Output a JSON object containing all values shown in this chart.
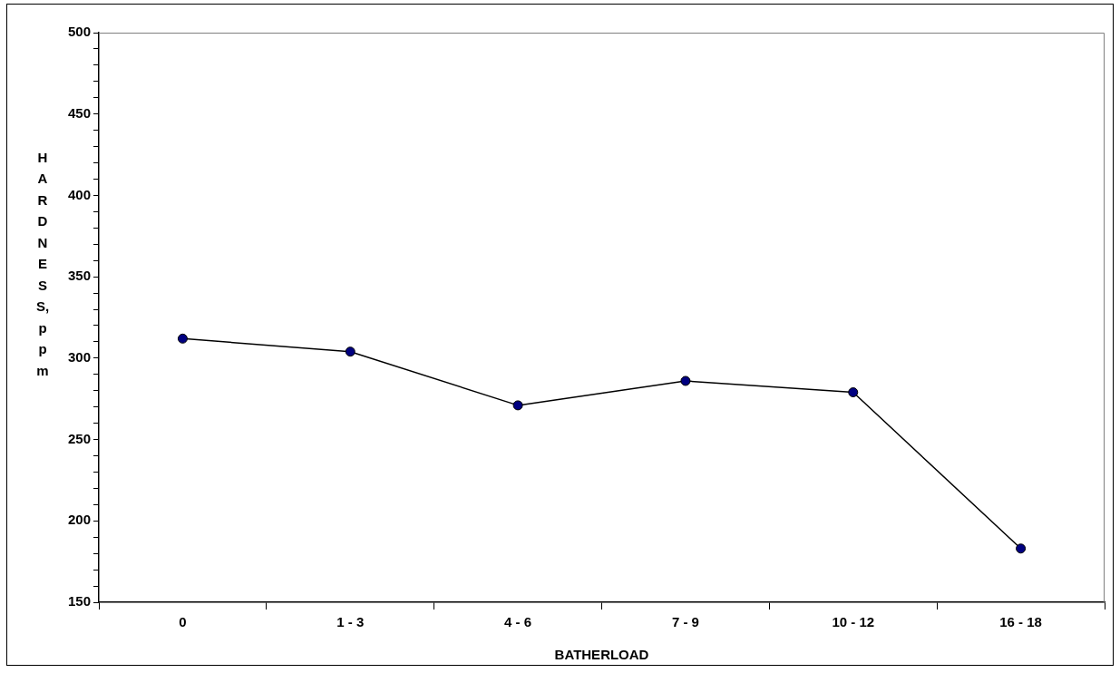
{
  "chart_data": {
    "type": "line",
    "xlabel": "BATHERLOAD",
    "ylabel": "HARDNESS, ppm",
    "categories": [
      "0",
      "1 - 3",
      "4 - 6",
      "7 - 9",
      "10 - 12",
      "16 - 18"
    ],
    "series": [
      {
        "color": "#000080",
        "values": [
          312,
          304,
          271,
          286,
          279,
          183
        ]
      }
    ],
    "ylim": [
      150,
      500
    ],
    "yticks": [
      150,
      {
        "value": 160,
        "label": null
      },
      {
        "value": 170,
        "label": null
      },
      {
        "value": 180,
        "label": null
      },
      {
        "value": 190,
        "label": null
      },
      200,
      {
        "value": 210,
        "label": null
      },
      {
        "value": 220,
        "label": null
      },
      {
        "value": 230,
        "label": null
      },
      {
        "value": 240,
        "label": null
      },
      250,
      {
        "value": 260,
        "label": null
      },
      {
        "value": 270,
        "label": null
      },
      {
        "value": 280,
        "label": null
      },
      {
        "value": 290,
        "label": null
      },
      300,
      {
        "value": 310,
        "label": null
      },
      {
        "value": 320,
        "label": null
      },
      {
        "value": 330,
        "label": null
      },
      {
        "value": 340,
        "label": null
      },
      350,
      {
        "value": 360,
        "label": null
      },
      {
        "value": 370,
        "label": null
      },
      {
        "value": 380,
        "label": null
      },
      {
        "value": 390,
        "label": null
      },
      400,
      {
        "value": 410,
        "label": null
      },
      {
        "value": 420,
        "label": null
      },
      {
        "value": 430,
        "label": null
      },
      {
        "value": 440,
        "label": null
      },
      450,
      {
        "value": 460,
        "label": null
      },
      {
        "value": 470,
        "label": null
      },
      {
        "value": 480,
        "label": null
      },
      {
        "value": 490,
        "label": null
      },
      500
    ],
    "grid": false,
    "legend": false,
    "marker": "circle",
    "line_style": "solid"
  }
}
